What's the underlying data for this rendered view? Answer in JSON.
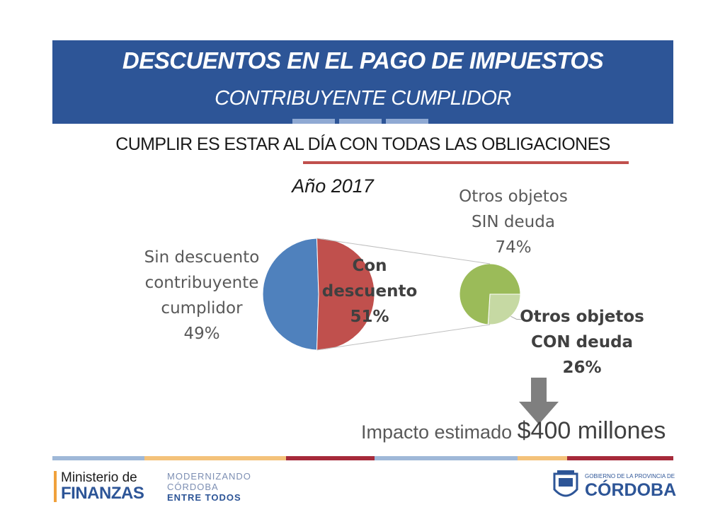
{
  "header": {
    "title": "DESCUENTOS EN EL PAGO DE IMPUESTOS",
    "subtitle": "CONTRIBUYENTE CUMPLIDOR",
    "banner_color": "#2d5597"
  },
  "subheading": "CUMPLIR ES ESTAR AL DÍA CON TODAS LAS OBLIGACIONES",
  "chart_data": {
    "type": "pie",
    "title": "Año 2017",
    "main_pie": {
      "slices": [
        {
          "label_lines": [
            "Sin descuento",
            "contribuyente",
            "cumplidor",
            "49%"
          ],
          "value": 49,
          "color": "#4f81bd"
        },
        {
          "label_lines": [
            "Con",
            "descuento",
            "51%"
          ],
          "value": 51,
          "color": "#c0504d"
        }
      ]
    },
    "breakdown_pie": {
      "of": "Con descuento",
      "slices": [
        {
          "label_lines": [
            "Otros objetos",
            "SIN deuda",
            "74%"
          ],
          "value": 74,
          "color": "#9bbb59"
        },
        {
          "label_lines": [
            "Otros objetos",
            "CON deuda",
            "26%"
          ],
          "value": 26,
          "color": "#c6d9a3"
        }
      ]
    }
  },
  "impact": {
    "label": "Impacto estimado",
    "value": "$400 millones"
  },
  "footer": {
    "ministerio": "Ministerio de",
    "finanzas": "FINANZAS",
    "modernizando": [
      "MODERNIZANDO",
      "CÓRDOBA"
    ],
    "entre_todos": "ENTRE TODOS",
    "gobierno": "GOBIERNO DE LA PROVINCIA DE",
    "cordoba": "CÓRDOBA"
  }
}
